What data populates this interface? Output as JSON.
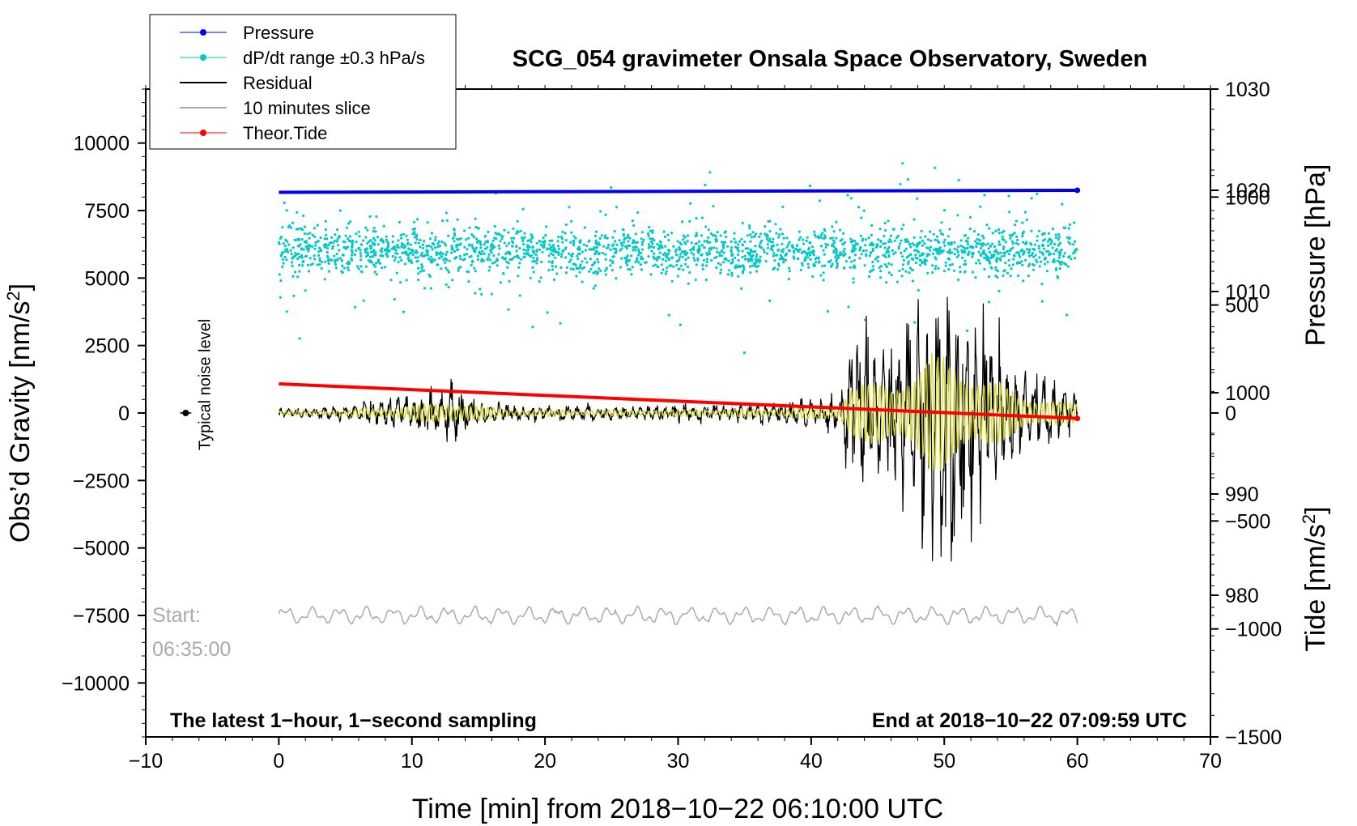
{
  "chart_data": {
    "type": "line",
    "title": "SCG_054 gravimeter Onsala Space Observatory, Sweden",
    "xlabel": "Time [min] from 2018−10−22 06:10:00 UTC",
    "ylabel": "Obs’d Gravity [nm/s",
    "ylabel_sup": "2",
    "ylabel_end": "]",
    "right_label_pressure": "Pressure [hPa]",
    "right_label_tide": "Tide [nm/s",
    "right_label_tide_sup": "2",
    "right_label_tide_end": "]",
    "xlim": [
      -10,
      70
    ],
    "ylim": [
      -12000,
      12000
    ],
    "pressure_ylim": [
      966,
      1030
    ],
    "tide_ylim": [
      -1500,
      1500
    ],
    "x_ticks": [
      {
        "value": -10,
        "label": "−10"
      },
      {
        "value": 0,
        "label": "0"
      },
      {
        "value": 10,
        "label": "10"
      },
      {
        "value": 20,
        "label": "20"
      },
      {
        "value": 30,
        "label": "30"
      },
      {
        "value": 40,
        "label": "40"
      },
      {
        "value": 50,
        "label": "50"
      },
      {
        "value": 60,
        "label": "60"
      },
      {
        "value": 70,
        "label": "70"
      }
    ],
    "y_ticks": [
      {
        "value": 10000,
        "label": "10000"
      },
      {
        "value": 7500,
        "label": "7500"
      },
      {
        "value": 5000,
        "label": "5000"
      },
      {
        "value": 2500,
        "label": "2500"
      },
      {
        "value": 0,
        "label": "0"
      },
      {
        "value": -2500,
        "label": "−2500"
      },
      {
        "value": -5000,
        "label": "−5000"
      },
      {
        "value": -7500,
        "label": "−7500"
      },
      {
        "value": -10000,
        "label": "−10000"
      }
    ],
    "pressure_ticks": [
      {
        "value": 1030,
        "label": "1030"
      },
      {
        "value": 1020,
        "label": "1020"
      },
      {
        "value": 1010,
        "label": "1010"
      },
      {
        "value": 1000,
        "label": "1000"
      },
      {
        "value": 990,
        "label": "990"
      },
      {
        "value": 980,
        "label": "980"
      }
    ],
    "tide_ticks": [
      {
        "value": 1000,
        "label": "1000"
      },
      {
        "value": 500,
        "label": "500"
      },
      {
        "value": 0,
        "label": "0"
      },
      {
        "value": -500,
        "label": "−500"
      },
      {
        "value": -1000,
        "label": "−1000"
      },
      {
        "value": -1500,
        "label": "−1500"
      }
    ],
    "series": [
      {
        "name": "Pressure",
        "color": "#0000ee",
        "axis": "pressure",
        "x": [
          0,
          60
        ],
        "values": [
          1019.8,
          1020.0
        ]
      },
      {
        "name": "dP/dt range ±0.3 hPa/s",
        "color": "#00c8c8",
        "axis": "gravity",
        "center": 6000,
        "spread": 800
      },
      {
        "name": "Residual",
        "color": "#000000",
        "axis": "gravity",
        "envelope": [
          {
            "x": 0,
            "a": 150
          },
          {
            "x": 5,
            "a": 250
          },
          {
            "x": 8,
            "a": 500
          },
          {
            "x": 13,
            "a": 900
          },
          {
            "x": 17,
            "a": 300
          },
          {
            "x": 25,
            "a": 250
          },
          {
            "x": 33,
            "a": 300
          },
          {
            "x": 38,
            "a": 400
          },
          {
            "x": 42,
            "a": 600
          },
          {
            "x": 43,
            "a": 2800
          },
          {
            "x": 46,
            "a": 2400
          },
          {
            "x": 49,
            "a": 5200
          },
          {
            "x": 52,
            "a": 3800
          },
          {
            "x": 56,
            "a": 1500
          },
          {
            "x": 60,
            "a": 800
          }
        ]
      },
      {
        "name": "10 minutes slice",
        "color": "#aaaaaa",
        "axis": "gravity",
        "center": -7500,
        "amplitude": 300
      },
      {
        "name": "Theor.Tide",
        "color": "#ff0000",
        "axis": "tide",
        "x": [
          0,
          60
        ],
        "values": [
          135,
          -25
        ]
      }
    ],
    "typical_noise_level": {
      "label": "Typical noise level",
      "x": -7,
      "value": 0
    },
    "legend_position": "top-left"
  },
  "annotations": {
    "start_label": "Start:",
    "start_time": "06:35:00",
    "bottom_left": "The latest 1−hour, 1−second sampling",
    "bottom_right": "End at 2018−10−22 07:09:59 UTC"
  }
}
